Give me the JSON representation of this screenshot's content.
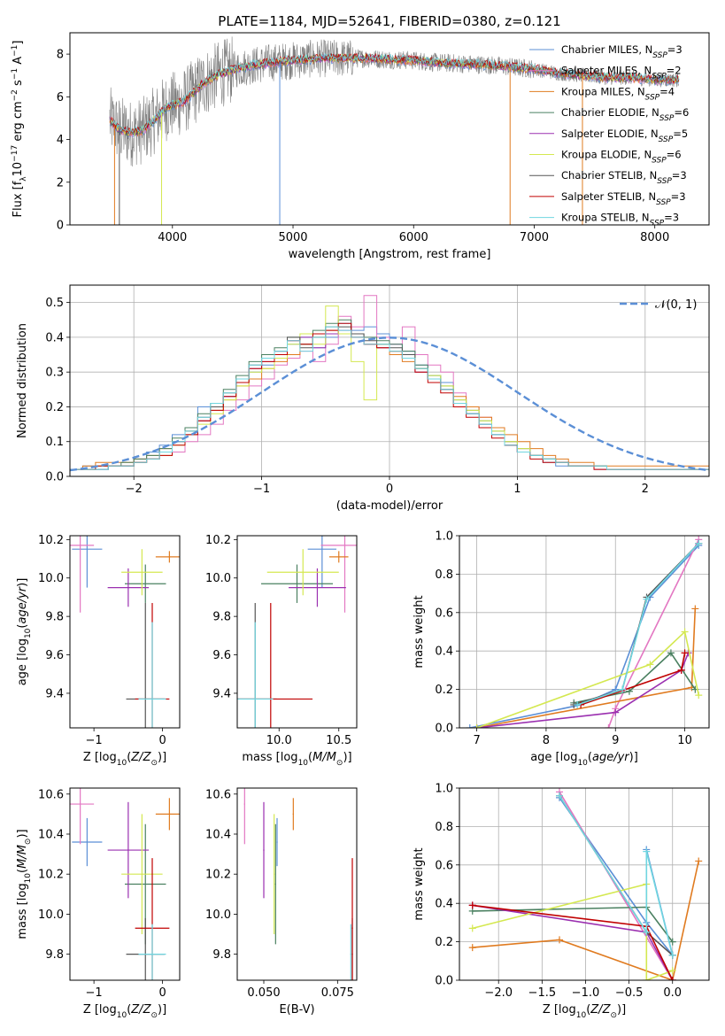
{
  "title": "PLATE=1184, MJD=52641, FIBERID=0380, z=0.121",
  "colors": {
    "Chabrier MILES": "#5b8fd6",
    "Salpeter MILES": "#e377c2",
    "Kroupa MILES": "#e07b20",
    "Chabrier ELODIE": "#4a8060",
    "Salpeter ELODIE": "#9b30b0",
    "Kroupa ELODIE": "#d4e850",
    "Chabrier STELIB": "#555555",
    "Salpeter STELIB": "#c00000",
    "Kroupa STELIB": "#70d6e0"
  },
  "chart_data": [
    {
      "id": "spectrum",
      "type": "line",
      "xlabel": "wavelength [Angstrom, rest frame]",
      "ylabel_parts": [
        "Flux [f",
        "λ",
        "10",
        "−17",
        " erg cm",
        "−2",
        " s",
        "−1",
        " A",
        "−1",
        "]"
      ],
      "xlim": [
        3150,
        8450
      ],
      "ylim": [
        0,
        9
      ],
      "xticks": [
        4000,
        5000,
        6000,
        7000,
        8000
      ],
      "yticks": [
        0,
        2,
        4,
        6,
        8
      ],
      "legend_position": "top-right",
      "legend": [
        {
          "name": "Chabrier MILES",
          "n": 3
        },
        {
          "name": "Salpeter MILES",
          "n": 2
        },
        {
          "name": "Kroupa MILES",
          "n": 4
        },
        {
          "name": "Chabrier ELODIE",
          "n": 6
        },
        {
          "name": "Salpeter ELODIE",
          "n": 5
        },
        {
          "name": "Kroupa ELODIE",
          "n": 6
        },
        {
          "name": "Chabrier STELIB",
          "n": 3
        },
        {
          "name": "Salpeter STELIB",
          "n": 3
        },
        {
          "name": "Kroupa STELIB",
          "n": 3
        }
      ],
      "legend_subscript": "SSP",
      "data_curve": [
        [
          3480,
          4.9
        ],
        [
          3550,
          4.5
        ],
        [
          3650,
          4.3
        ],
        [
          3750,
          4.4
        ],
        [
          3850,
          4.9
        ],
        [
          3950,
          5.5
        ],
        [
          4100,
          5.8
        ],
        [
          4250,
          6.6
        ],
        [
          4400,
          7.1
        ],
        [
          4600,
          7.4
        ],
        [
          4800,
          7.6
        ],
        [
          5000,
          7.7
        ],
        [
          5200,
          7.8
        ],
        [
          5400,
          7.8
        ],
        [
          5600,
          7.8
        ],
        [
          5800,
          7.75
        ],
        [
          6000,
          7.7
        ],
        [
          6200,
          7.6
        ],
        [
          6400,
          7.55
        ],
        [
          6600,
          7.5
        ],
        [
          6800,
          7.4
        ],
        [
          7000,
          7.3
        ],
        [
          7200,
          7.1
        ],
        [
          7400,
          7.0
        ],
        [
          7600,
          6.9
        ],
        [
          7800,
          6.9
        ],
        [
          8000,
          6.8
        ],
        [
          8200,
          6.8
        ]
      ],
      "spikes": [
        [
          3520,
          0
        ],
        [
          3560,
          0
        ],
        [
          3910,
          0
        ],
        [
          4890,
          0
        ],
        [
          6800,
          0
        ],
        [
          7400,
          0
        ]
      ]
    },
    {
      "id": "residuals",
      "type": "histogram",
      "xlabel": "(data-model)/error",
      "ylabel": "Normed distribution",
      "xlim": [
        -2.5,
        2.5
      ],
      "ylim": [
        0,
        0.55
      ],
      "xticks": [
        -2,
        -1,
        0,
        1,
        2
      ],
      "yticks": [
        0.0,
        0.1,
        0.2,
        0.3,
        0.4,
        0.5
      ],
      "grid": true,
      "bin_width": 0.1,
      "normal_label": "𝒩(0, 1)",
      "legend_position": "top-right"
    },
    {
      "id": "age-vs-Z",
      "type": "errorbar",
      "xlabel": "Z [log10(Z/Z⊙)]",
      "ylabel": "age  [log10(age/yr)]",
      "xlim": [
        -1.35,
        0.25
      ],
      "ylim": [
        9.22,
        10.22
      ],
      "xticks": [
        -1,
        0
      ],
      "yticks": [
        9.4,
        9.6,
        9.8,
        10.0,
        10.2
      ]
    },
    {
      "id": "age-vs-mass",
      "type": "errorbar",
      "xlabel": "mass [log10(M/M⊙)]",
      "xlim": [
        9.65,
        10.65
      ],
      "ylim": [
        9.22,
        10.22
      ],
      "xticks": [
        10.0,
        10.5
      ],
      "yticks": [
        9.4,
        9.6,
        9.8,
        10.0,
        10.2
      ]
    },
    {
      "id": "weight-vs-age",
      "type": "line",
      "xlabel": "age  [log10(age/yr)]",
      "ylabel": "mass weight",
      "xlim": [
        6.75,
        10.35
      ],
      "ylim": [
        0,
        1
      ],
      "xticks": [
        7,
        8,
        9,
        10
      ],
      "yticks": [
        0.0,
        0.2,
        0.4,
        0.6,
        0.8,
        1.0
      ],
      "grid": true
    },
    {
      "id": "mass-vs-Z",
      "type": "errorbar",
      "xlabel": "Z [log10(Z/Z⊙)]",
      "ylabel": "mass [log10(M/M⊙)]",
      "xlim": [
        -1.35,
        0.25
      ],
      "ylim": [
        9.67,
        10.63
      ],
      "xticks": [
        -1,
        0
      ],
      "yticks": [
        9.8,
        10.0,
        10.2,
        10.4,
        10.6
      ]
    },
    {
      "id": "mass-vs-ebv",
      "type": "errorbar",
      "xlabel": "E(B-V)",
      "xlim": [
        0.041,
        0.0815
      ],
      "ylim": [
        9.67,
        10.63
      ],
      "xticks": [
        0.05,
        0.075
      ],
      "xtick_labels": [
        "0.050",
        "0.075"
      ],
      "yticks": [
        9.8,
        10.0,
        10.2,
        10.4,
        10.6
      ]
    },
    {
      "id": "weight-vs-Z",
      "type": "line",
      "xlabel": "Z [log10(Z/Z⊙)]",
      "ylabel": "mass weight",
      "xlim": [
        -2.45,
        0.42
      ],
      "ylim": [
        0,
        1
      ],
      "xticks": [
        -2.0,
        -1.5,
        -1.0,
        -0.5,
        0.0
      ],
      "yticks": [
        0.0,
        0.2,
        0.4,
        0.6,
        0.8,
        1.0
      ],
      "grid": true
    }
  ],
  "models": [
    {
      "name": "Chabrier MILES",
      "Z": -1.1,
      "Zerr": 0.22,
      "age": 10.15,
      "ageErr": 0.2,
      "mass": 10.36,
      "massErr": 0.12,
      "massHi": 10.4,
      "massLo": 10.12,
      "ebv": 0.0545,
      "ebvErr": 0.06,
      "hist": [
        0.02,
        0.03,
        0.02,
        0.03,
        0.03,
        0.05,
        0.07,
        0.09,
        0.12,
        0.14,
        0.2,
        0.2,
        0.23,
        0.27,
        0.3,
        0.32,
        0.35,
        0.38,
        0.4,
        0.37,
        0.4,
        0.44,
        0.42,
        0.43,
        0.41,
        0.38,
        0.36,
        0.32,
        0.29,
        0.27,
        0.21,
        0.18,
        0.15,
        0.12,
        0.09,
        0.07,
        0.06,
        0.04,
        0.03,
        0.03,
        0.03,
        0.02,
        0.02,
        0.02,
        0.02,
        0.02,
        0.02,
        0.02,
        0.02,
        0.02
      ],
      "wAge": [
        [
          6.9,
          0.0
        ],
        [
          8.5,
          0.12
        ],
        [
          9.0,
          0.2
        ],
        [
          9.5,
          0.68
        ],
        [
          10.2,
          0.95
        ]
      ],
      "wZ": [
        [
          -1.3,
          0.95
        ],
        [
          -0.3,
          0.3
        ],
        [
          0.0,
          0.13
        ],
        [
          -0.3,
          0.68
        ]
      ]
    },
    {
      "name": "Salpeter MILES",
      "Z": -1.2,
      "Zerr": 0.2,
      "age": 10.17,
      "ageErr": 0.35,
      "mass": 10.55,
      "massErr": 0.2,
      "ebv": 0.0435,
      "ebvErr": 0.15,
      "hist": [
        0.02,
        0.02,
        0.03,
        0.03,
        0.03,
        0.04,
        0.05,
        0.06,
        0.07,
        0.1,
        0.12,
        0.15,
        0.19,
        0.22,
        0.26,
        0.28,
        0.32,
        0.34,
        0.36,
        0.33,
        0.38,
        0.46,
        0.43,
        0.52,
        0.4,
        0.38,
        0.43,
        0.35,
        0.32,
        0.3,
        0.24,
        0.2,
        0.17,
        0.14,
        0.1,
        0.08,
        0.06,
        0.05,
        0.04,
        0.03,
        0.03,
        0.02,
        0.02,
        0.02,
        0.02,
        0.02,
        0.02,
        0.02,
        0.02,
        0.02
      ],
      "wAge": [
        [
          8.9,
          0.0
        ],
        [
          9.0,
          0.1
        ],
        [
          10.2,
          0.98
        ]
      ],
      "wZ": [
        [
          -1.3,
          0.98
        ],
        [
          0.0,
          0.0
        ]
      ]
    },
    {
      "name": "Kroupa MILES",
      "Z": 0.1,
      "Zerr": 0.2,
      "age": 10.11,
      "ageErr": 0.03,
      "mass": 10.5,
      "massErr": 0.08,
      "ebv": 0.06,
      "ebvErr": 0.04,
      "hist": [
        0.02,
        0.03,
        0.04,
        0.04,
        0.04,
        0.05,
        0.06,
        0.08,
        0.1,
        0.13,
        0.16,
        0.19,
        0.22,
        0.26,
        0.28,
        0.31,
        0.33,
        0.35,
        0.38,
        0.4,
        0.42,
        0.41,
        0.4,
        0.38,
        0.37,
        0.35,
        0.33,
        0.31,
        0.28,
        0.25,
        0.23,
        0.2,
        0.17,
        0.14,
        0.12,
        0.1,
        0.08,
        0.06,
        0.05,
        0.04,
        0.04,
        0.03,
        0.03,
        0.03,
        0.03,
        0.03,
        0.03,
        0.03,
        0.03,
        0.03
      ],
      "wAge": [
        [
          7.0,
          0.0
        ],
        [
          10.1,
          0.21
        ],
        [
          10.15,
          0.62
        ]
      ],
      "wZ": [
        [
          -2.3,
          0.17
        ],
        [
          -1.3,
          0.21
        ],
        [
          0.0,
          0.0
        ],
        [
          0.3,
          0.62
        ]
      ]
    },
    {
      "name": "Chabrier ELODIE",
      "Z": -0.25,
      "Zerr": 0.3,
      "age": 9.97,
      "ageErr": 0.1,
      "mass": 10.15,
      "massErr": 0.3,
      "ebv": 0.054,
      "ebvErr": 0.2,
      "hist": [
        0.02,
        0.02,
        0.03,
        0.03,
        0.04,
        0.05,
        0.06,
        0.08,
        0.11,
        0.14,
        0.18,
        0.21,
        0.25,
        0.29,
        0.33,
        0.35,
        0.37,
        0.4,
        0.38,
        0.42,
        0.44,
        0.45,
        0.41,
        0.4,
        0.39,
        0.38,
        0.36,
        0.32,
        0.29,
        0.26,
        0.22,
        0.19,
        0.16,
        0.13,
        0.1,
        0.08,
        0.06,
        0.05,
        0.04,
        0.03,
        0.03,
        0.03,
        0.02,
        0.02,
        0.02,
        0.02,
        0.02,
        0.02,
        0.02,
        0.02
      ],
      "wAge": [
        [
          8.4,
          0.13
        ],
        [
          9.2,
          0.19
        ],
        [
          9.8,
          0.39
        ],
        [
          10.15,
          0.2
        ]
      ],
      "wZ": [
        [
          -2.3,
          0.36
        ],
        [
          -0.3,
          0.38
        ],
        [
          0.0,
          0.2
        ]
      ]
    },
    {
      "name": "Salpeter ELODIE",
      "Z": -0.5,
      "Zerr": 0.3,
      "age": 9.95,
      "ageErr": 0.1,
      "mass": 10.32,
      "massErr": 0.24,
      "ebv": 0.05,
      "ebvErr": 0.25,
      "hist": [
        0.02,
        0.02,
        0.02,
        0.03,
        0.03,
        0.04,
        0.05,
        0.07,
        0.1,
        0.12,
        0.16,
        0.2,
        0.23,
        0.27,
        0.31,
        0.33,
        0.36,
        0.39,
        0.4,
        0.37,
        0.41,
        0.42,
        0.4,
        0.38,
        0.37,
        0.36,
        0.34,
        0.3,
        0.28,
        0.25,
        0.21,
        0.18,
        0.15,
        0.12,
        0.09,
        0.07,
        0.06,
        0.05,
        0.04,
        0.03,
        0.03,
        0.03,
        0.02,
        0.02,
        0.02,
        0.02,
        0.02,
        0.02,
        0.02,
        0.02
      ],
      "wAge": [
        [
          7.0,
          0.0
        ],
        [
          9.0,
          0.08
        ],
        [
          9.95,
          0.3
        ],
        [
          10.05,
          0.39
        ]
      ],
      "wZ": [
        [
          -2.3,
          0.39
        ],
        [
          -0.3,
          0.25
        ],
        [
          0.0,
          0.0
        ]
      ]
    },
    {
      "name": "Kroupa ELODIE",
      "Z": -0.3,
      "Zerr": 0.3,
      "age": 10.03,
      "ageErr": 0.12,
      "mass": 10.2,
      "massErr": 0.3,
      "ebv": 0.0535,
      "ebvErr": 0.3,
      "hist": [
        0.02,
        0.02,
        0.03,
        0.03,
        0.03,
        0.04,
        0.05,
        0.06,
        0.09,
        0.12,
        0.15,
        0.18,
        0.22,
        0.26,
        0.3,
        0.31,
        0.34,
        0.38,
        0.41,
        0.38,
        0.49,
        0.41,
        0.33,
        0.22,
        0.38,
        0.36,
        0.35,
        0.31,
        0.29,
        0.26,
        0.22,
        0.19,
        0.16,
        0.13,
        0.1,
        0.08,
        0.06,
        0.05,
        0.04,
        0.03,
        0.03,
        0.03,
        0.02,
        0.02,
        0.02,
        0.02,
        0.02,
        0.02,
        0.02,
        0.02
      ],
      "wAge": [
        [
          7.0,
          0.0
        ],
        [
          9.5,
          0.33
        ],
        [
          10.0,
          0.5
        ],
        [
          10.2,
          0.17
        ]
      ],
      "wZ": [
        [
          -2.3,
          0.27
        ],
        [
          -0.3,
          0.5
        ],
        [
          -0.3,
          0.0
        ],
        [
          0.0,
          0.05
        ]
      ]
    },
    {
      "name": "Chabrier STELIB",
      "Z": -0.25,
      "Zerr": 0.28,
      "age": 9.37,
      "ageErr": 0.5,
      "mass": 9.8,
      "massErr": 0.18,
      "ebv": 0.08,
      "ebvErr": 0.3,
      "hist": [
        0.02,
        0.02,
        0.02,
        0.03,
        0.03,
        0.04,
        0.05,
        0.07,
        0.1,
        0.13,
        0.17,
        0.2,
        0.24,
        0.28,
        0.32,
        0.34,
        0.36,
        0.4,
        0.37,
        0.4,
        0.43,
        0.43,
        0.41,
        0.39,
        0.38,
        0.37,
        0.35,
        0.31,
        0.28,
        0.25,
        0.21,
        0.18,
        0.15,
        0.12,
        0.09,
        0.07,
        0.06,
        0.05,
        0.04,
        0.03,
        0.03,
        0.03,
        0.02,
        0.02,
        0.02,
        0.02,
        0.02,
        0.02,
        0.02,
        0.02
      ],
      "wAge": [
        [
          8.4,
          0.12
        ],
        [
          9.1,
          0.2
        ],
        [
          9.45,
          0.68
        ],
        [
          10.2,
          0.96
        ]
      ],
      "wZ": [
        [
          -1.3,
          0.96
        ],
        [
          -0.3,
          0.25
        ],
        [
          0.0,
          0.13
        ]
      ]
    },
    {
      "name": "Salpeter STELIB",
      "Z": -0.15,
      "Zerr": 0.25,
      "age": 9.37,
      "ageErr": 0.5,
      "mass": 9.93,
      "massErr": 0.35,
      "ebv": 0.08,
      "ebvErr": 0.1,
      "hist": [
        0.02,
        0.02,
        0.03,
        0.03,
        0.03,
        0.04,
        0.05,
        0.06,
        0.09,
        0.12,
        0.16,
        0.19,
        0.23,
        0.27,
        0.31,
        0.33,
        0.35,
        0.39,
        0.38,
        0.41,
        0.42,
        0.44,
        0.4,
        0.38,
        0.37,
        0.36,
        0.34,
        0.3,
        0.27,
        0.24,
        0.2,
        0.17,
        0.14,
        0.11,
        0.09,
        0.07,
        0.05,
        0.04,
        0.04,
        0.03,
        0.03,
        0.02,
        0.02,
        0.02,
        0.02,
        0.02,
        0.02,
        0.02,
        0.02,
        0.02
      ],
      "wAge": [
        [
          8.5,
          0.12
        ],
        [
          9.95,
          0.3
        ],
        [
          10.0,
          0.39
        ]
      ],
      "wZ": [
        [
          -2.3,
          0.39
        ],
        [
          -0.3,
          0.28
        ],
        [
          0.0,
          0.0
        ]
      ]
    },
    {
      "name": "Kroupa STELIB",
      "Z": -0.15,
      "Zerr": 0.2,
      "age": 9.37,
      "ageErr": 0.4,
      "mass": 9.8,
      "massErr": 0.15,
      "ebv": 0.0795,
      "ebvErr": 0.1,
      "hist": [
        0.02,
        0.02,
        0.02,
        0.03,
        0.03,
        0.04,
        0.05,
        0.07,
        0.1,
        0.13,
        0.17,
        0.21,
        0.24,
        0.28,
        0.32,
        0.34,
        0.36,
        0.39,
        0.36,
        0.4,
        0.43,
        0.42,
        0.4,
        0.38,
        0.38,
        0.36,
        0.34,
        0.31,
        0.28,
        0.25,
        0.21,
        0.18,
        0.15,
        0.12,
        0.09,
        0.07,
        0.06,
        0.05,
        0.04,
        0.03,
        0.03,
        0.03,
        0.02,
        0.02,
        0.02,
        0.02,
        0.02,
        0.02,
        0.02,
        0.02
      ],
      "wAge": [
        [
          8.45,
          0.12
        ],
        [
          9.1,
          0.2
        ],
        [
          9.45,
          0.67
        ],
        [
          10.2,
          0.96
        ]
      ],
      "wZ": [
        [
          -1.3,
          0.96
        ],
        [
          -0.3,
          0.25
        ],
        [
          -0.3,
          0.67
        ],
        [
          0.0,
          0.13
        ]
      ]
    }
  ]
}
